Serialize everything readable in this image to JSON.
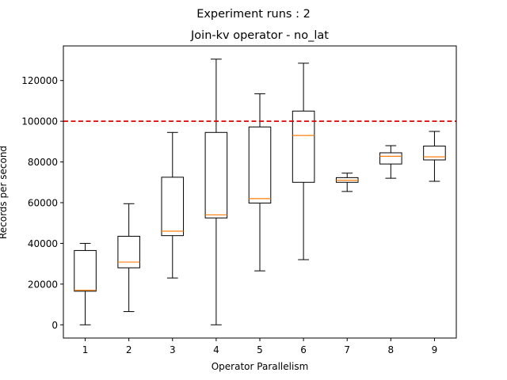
{
  "suptitle": "Experiment runs : 2",
  "chart_data": {
    "type": "box",
    "title": "Join-kv operator - no_lat",
    "xlabel": "Operator Parallelism",
    "ylabel": "Records per second",
    "categories": [
      "1",
      "2",
      "3",
      "4",
      "5",
      "6",
      "7",
      "8",
      "9"
    ],
    "boxes": [
      {
        "whisker_low": 0,
        "q1": 16500,
        "median": 17000,
        "q3": 36500,
        "whisker_high": 40000
      },
      {
        "whisker_low": 6500,
        "q1": 28000,
        "median": 30800,
        "q3": 43500,
        "whisker_high": 59500
      },
      {
        "whisker_low": 23000,
        "q1": 43800,
        "median": 46000,
        "q3": 72500,
        "whisker_high": 94500
      },
      {
        "whisker_low": 0,
        "q1": 52500,
        "median": 54000,
        "q3": 94500,
        "whisker_high": 130500
      },
      {
        "whisker_low": 26500,
        "q1": 59800,
        "median": 62000,
        "q3": 97200,
        "whisker_high": 113500
      },
      {
        "whisker_low": 32000,
        "q1": 70000,
        "median": 93000,
        "q3": 105000,
        "whisker_high": 128500
      },
      {
        "whisker_low": 65500,
        "q1": 70000,
        "median": 71000,
        "q3": 72300,
        "whisker_high": 74500
      },
      {
        "whisker_low": 72000,
        "q1": 79000,
        "median": 82800,
        "q3": 84500,
        "whisker_high": 88000
      },
      {
        "whisker_low": 70500,
        "q1": 81000,
        "median": 82500,
        "q3": 87800,
        "whisker_high": 95000
      }
    ],
    "reference_line": {
      "value": 100000,
      "color": "#e00000",
      "style": "dashed"
    },
    "ylim": [
      -6500,
      137000
    ],
    "xlim": [
      0.5,
      9.5
    ],
    "yticks": [
      0,
      20000,
      40000,
      60000,
      80000,
      100000,
      120000
    ],
    "median_color": "#ff7f0e",
    "box_color": "#000000",
    "grid": false,
    "legend": "none"
  }
}
